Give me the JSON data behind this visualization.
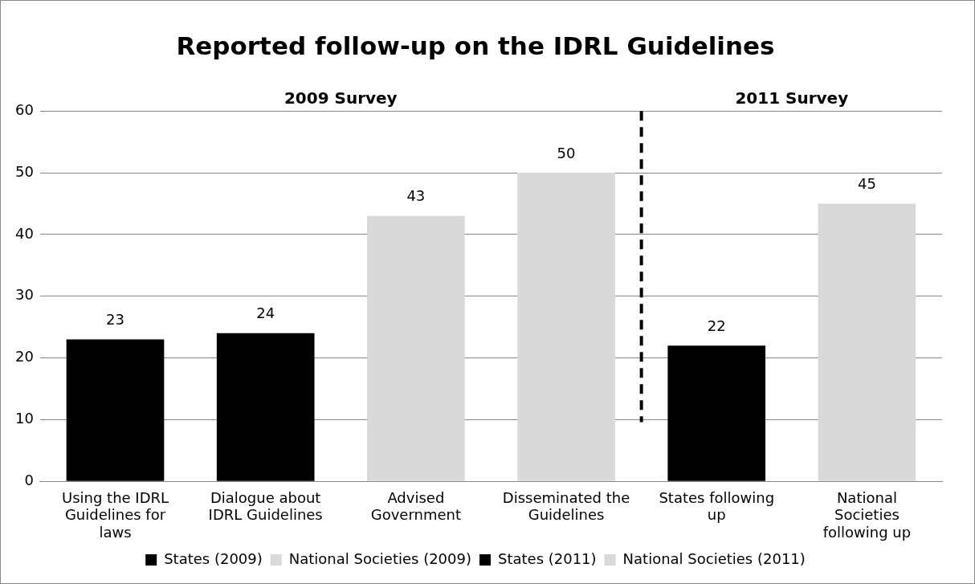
{
  "chart_data": {
    "type": "bar",
    "title": "Reported follow-up on the IDRL Guidelines",
    "categories": [
      "Using the IDRL Guidelines for laws",
      "Dialogue about IDRL Guidelines",
      "Advised Government",
      "Disseminated the Guidelines",
      "States following up",
      "National Societies following up"
    ],
    "series": [
      {
        "name": "States (2009)",
        "color": "#000000",
        "values": [
          23,
          24,
          null,
          null,
          null,
          null
        ]
      },
      {
        "name": "National Societies (2009)",
        "color": "#d9d9d9",
        "values": [
          null,
          null,
          43,
          50,
          null,
          null
        ]
      },
      {
        "name": "States (2011)",
        "color": "#000000",
        "values": [
          null,
          null,
          null,
          null,
          22,
          null
        ]
      },
      {
        "name": "National Societies (2011)",
        "color": "#d9d9d9",
        "values": [
          null,
          null,
          null,
          null,
          null,
          45
        ]
      }
    ],
    "stacked": true,
    "ylim": [
      0,
      60
    ],
    "yticks": [
      0,
      10,
      20,
      30,
      40,
      50,
      60
    ],
    "grid": "y",
    "legend": "bottom",
    "data_labels": true,
    "ref_lines": [
      {
        "axis": "x",
        "value": "States following up",
        "color": "#000000",
        "line_style": "dashed"
      }
    ],
    "annotations": [
      "2009 Survey",
      "2011 Survey"
    ]
  }
}
